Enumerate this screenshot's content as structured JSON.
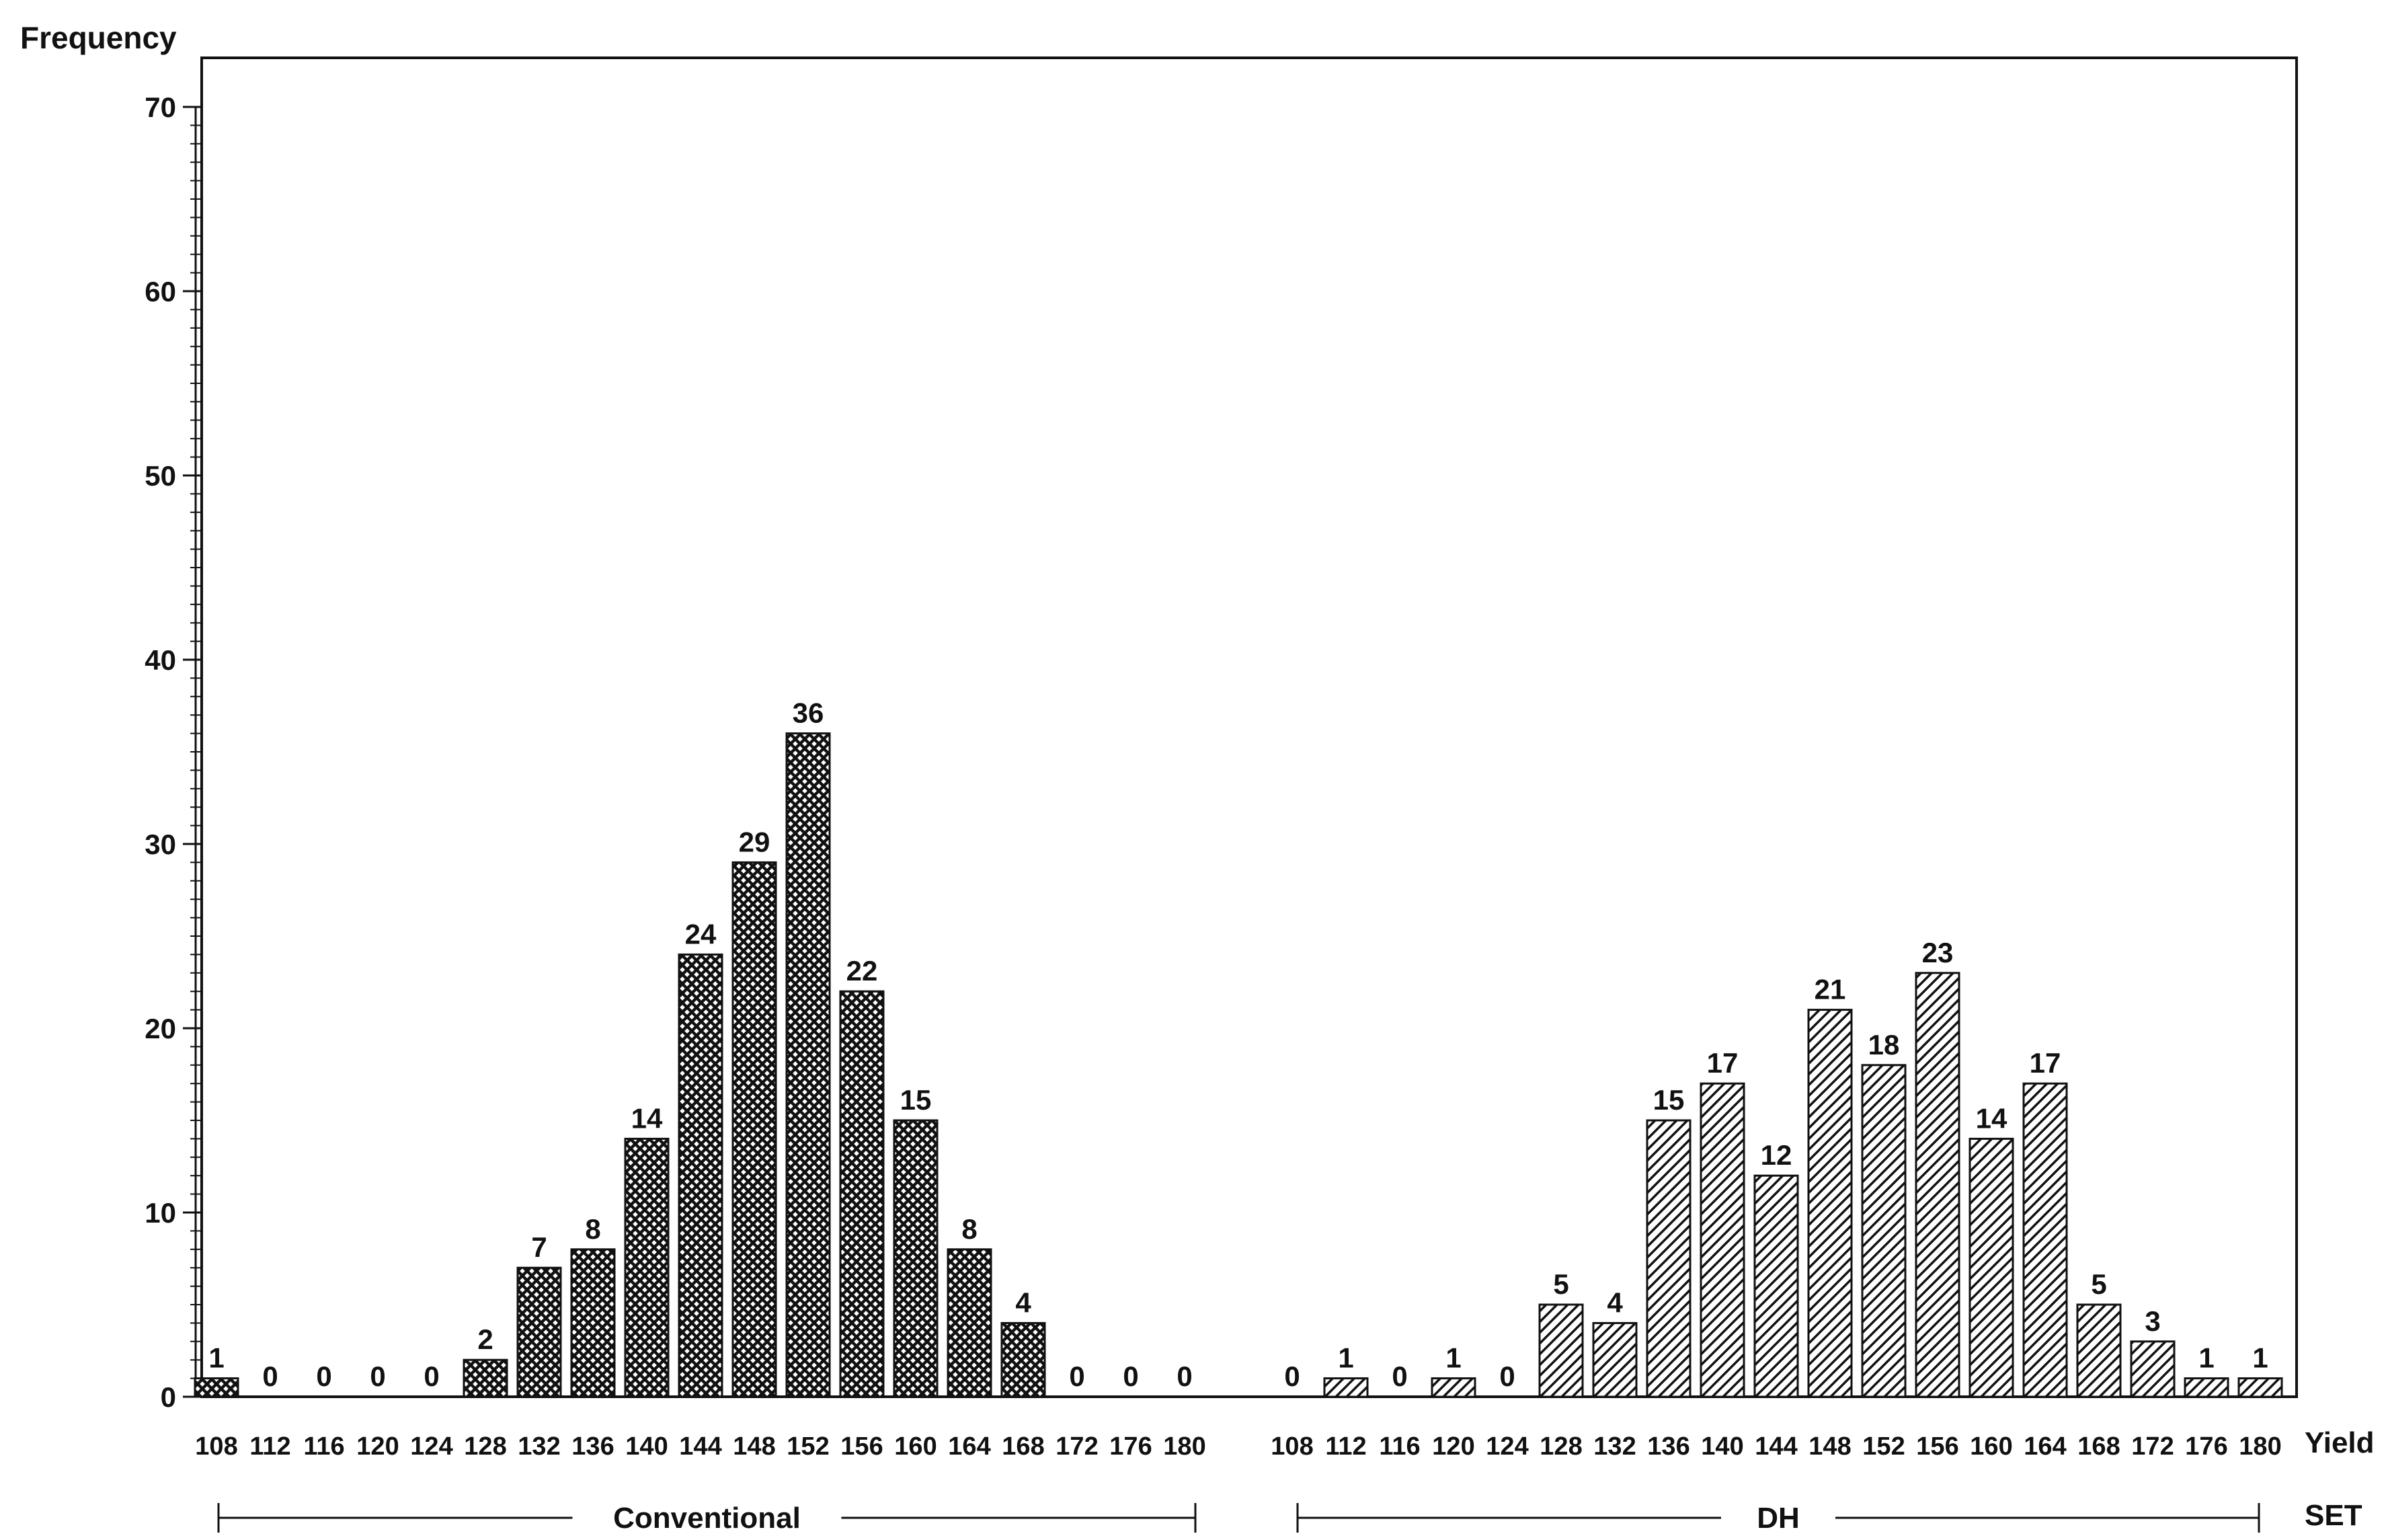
{
  "chart_data": {
    "type": "bar",
    "ylabel": "Frequency",
    "xlabel": "Yield",
    "group_axis_label": "SET",
    "ylim": [
      0,
      70
    ],
    "y_ticks": [
      0,
      10,
      20,
      30,
      40,
      50,
      60,
      70
    ],
    "grid": false,
    "groups": [
      {
        "name": "Conventional",
        "pattern": "crosshatch",
        "categories": [
          "108",
          "112",
          "116",
          "120",
          "124",
          "128",
          "132",
          "136",
          "140",
          "144",
          "148",
          "152",
          "156",
          "160",
          "164",
          "168",
          "172",
          "176",
          "180"
        ],
        "values": [
          1,
          0,
          0,
          0,
          0,
          2,
          7,
          8,
          14,
          24,
          29,
          36,
          22,
          15,
          8,
          4,
          0,
          0,
          0
        ]
      },
      {
        "name": "DH",
        "pattern": "diagonal",
        "categories": [
          "108",
          "112",
          "116",
          "120",
          "124",
          "128",
          "132",
          "136",
          "140",
          "144",
          "148",
          "152",
          "156",
          "160",
          "164",
          "168",
          "172",
          "176",
          "180"
        ],
        "values": [
          0,
          1,
          0,
          1,
          0,
          5,
          4,
          15,
          17,
          12,
          21,
          18,
          23,
          14,
          17,
          5,
          3,
          1,
          1
        ]
      }
    ]
  }
}
